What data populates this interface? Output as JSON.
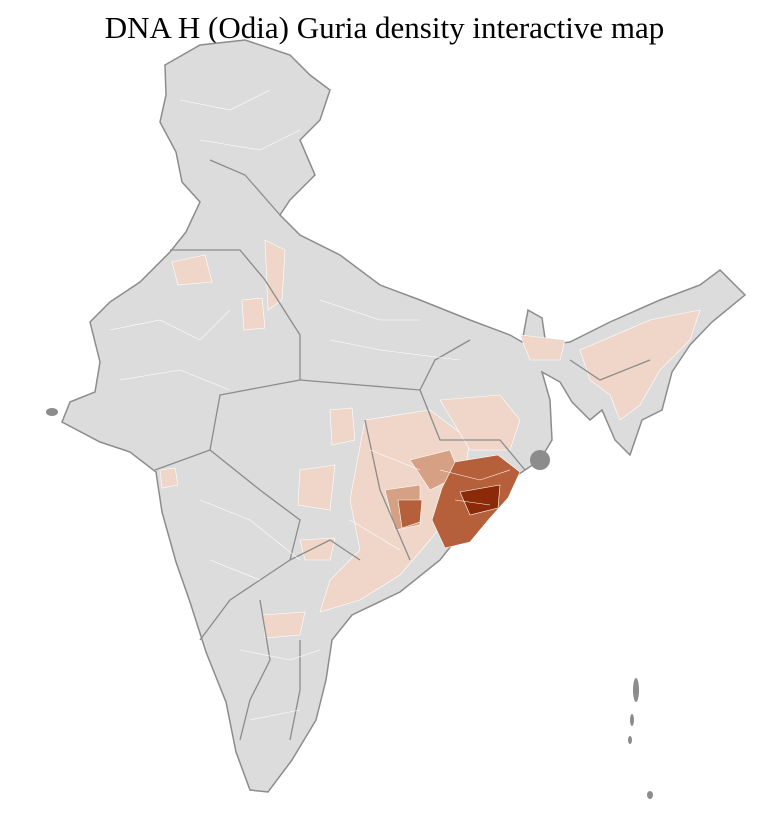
{
  "title": "DNA H (Odia) Guria density interactive map",
  "colors": {
    "base": "#dcdcdc",
    "district_border": "#ffffff",
    "state_border": "#8c8c8c",
    "low": "#efd6c9",
    "medium": "#d6a084",
    "high": "#b5603a",
    "highest": "#8b2a08"
  },
  "legend": null
}
